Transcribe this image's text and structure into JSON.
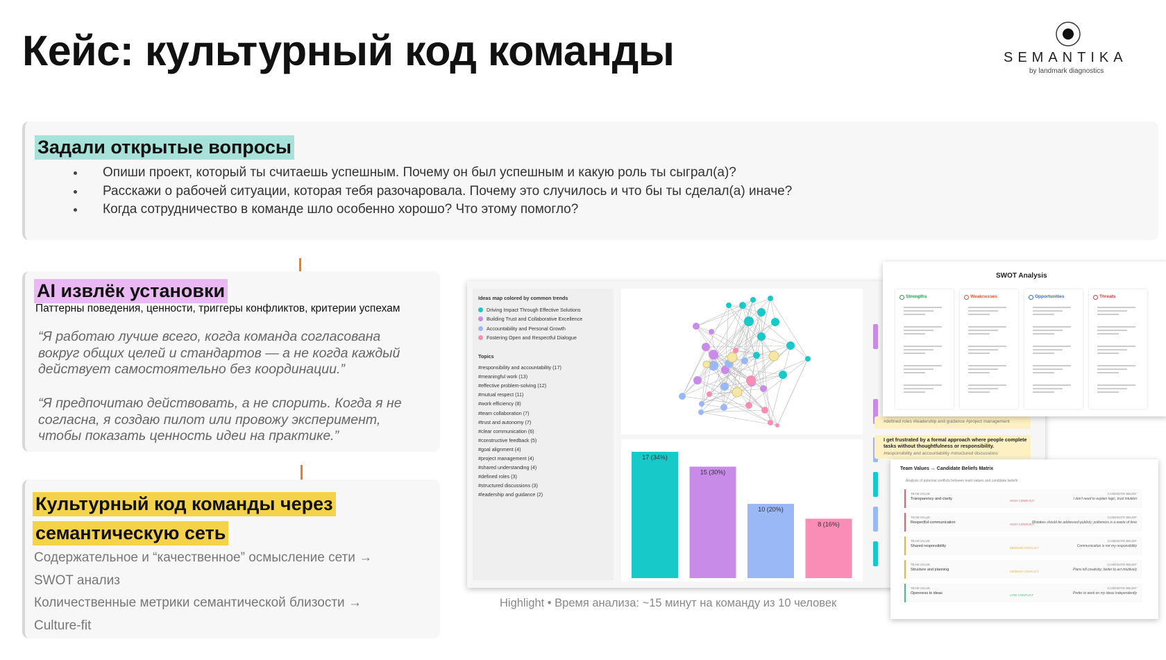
{
  "header": {
    "title": "Кейс: культурный код команды",
    "logo": {
      "name": "SEMANTIKA",
      "tagline": "by landmark diagnostics"
    }
  },
  "questions": {
    "heading": "Задали открытые вопросы",
    "items": [
      "Опиши проект, который ты считаешь успешным. Почему он был успешным и какую роль ты сыграл(а)?",
      "Расскажи о рабочей ситуации, которая тебя разочаровала. Почему это случилось и что бы ты сделал(а) иначе?",
      "Когда сотрудничество в команде шло особенно хорошо? Что этому помогло?"
    ]
  },
  "insights": {
    "heading": "AI извлёк установки",
    "subtitle": "Паттерны поведения, ценности, триггеры конфликтов, критерии успехам",
    "quotes": [
      "“Я работаю лучше всего, когда команда согласована вокруг общих целей и стандартов — а не когда каждый действует самостоятельно без координации.”",
      "“Я предпочитаю действовать, а не спорить. Когда я не согласна, я создаю пилот или провожу эксперимент, чтобы показать ценность идеи на практике.”"
    ]
  },
  "code": {
    "heading_lines": [
      "Культурный код команды через",
      "семантическую сеть"
    ],
    "lines": [
      "Содержательное и “качественное” осмысление сети →",
      "SWOT анализ",
      "Количественные метрики семантической близости →",
      "Culture-fit"
    ]
  },
  "screenshot": {
    "legend": {
      "title": "Ideas map colored by common trends",
      "trends": [
        {
          "name": "Driving Impact Through Effective Solutions",
          "color": "#17c9c9"
        },
        {
          "name": "Building Trust and Collaborative Excellence",
          "color": "#c88be8"
        },
        {
          "name": "Accountability and Personal Growth",
          "color": "#9ab8f5"
        },
        {
          "name": "Fostering Open and Respectful Dialogue",
          "color": "#f98db5"
        }
      ]
    },
    "topics": {
      "title": "Topics",
      "items": [
        "#responsibility and accountability (17)",
        "#meaningful work (13)",
        "#effective problem-solving (12)",
        "#mutual respect (11)",
        "#work efficiency (8)",
        "#team collaboration (7)",
        "#trust and autonomy (7)",
        "#clear communication (6)",
        "#constructive feedback (5)",
        "#goal alignment (4)",
        "#project management (4)",
        "#shared understanding (4)",
        "#defined roles (3)",
        "#structured discussions (3)",
        "#leadership and guidance (2)"
      ]
    },
    "bar_chart": {
      "type": "bar",
      "values": [
        17,
        15,
        10,
        8
      ],
      "value_labels": [
        "17 (34%)",
        "15 (30%)",
        "10 (20%)",
        "8 (16%)"
      ],
      "colors": [
        "#17c9c9",
        "#c88be8",
        "#9ab8f5",
        "#f98db5"
      ]
    },
    "cards": {
      "tags_top": "#defined roles  #leadership and guidance  #project management",
      "quote": "I get frustrated by a formal approach where people complete tasks without thoughtfulness or responsibility.",
      "tags_quote": "#responsibility and accountability  #structured discussions"
    },
    "caption": "Highlight • Время анализа: ~15 минут на команду из 10 человек"
  },
  "swot": {
    "title": "SWOT Analysis",
    "columns": [
      {
        "name": "Strengths",
        "color": "#2e9e5b"
      },
      {
        "name": "Weaknesses",
        "color": "#e0582f"
      },
      {
        "name": "Opportunities",
        "color": "#2f6fd6"
      },
      {
        "name": "Threats",
        "color": "#d93a3a"
      }
    ]
  },
  "matrix": {
    "title": "Team Values ↔ Candidate Beliefs Matrix",
    "subtitle": "Analysis of potential conflicts between team values and candidate beliefs",
    "team_label": "TEAM VALUE",
    "belief_label": "CANDIDATE BELIEF",
    "rows": [
      {
        "value": "Transparency and clarity",
        "conflict": "HIGH CONFLICT",
        "belief": "I don't need to explain logic, trust intuition",
        "color": "#e6626b"
      },
      {
        "value": "Respectful communication",
        "conflict": "HIGH CONFLICT",
        "belief": "Mistakes should be addressed publicly; politeness is a waste of time",
        "color": "#e6626b"
      },
      {
        "value": "Shared responsibility",
        "conflict": "MEDIUM CONFLICT",
        "belief": "Communication is not my responsibility",
        "color": "#f0b34a"
      },
      {
        "value": "Structure and planning",
        "conflict": "MEDIUM CONFLICT",
        "belief": "Plans kill creativity; better to act intuitively",
        "color": "#f0b34a"
      },
      {
        "value": "Openness to ideas",
        "conflict": "LOW CONFLICT",
        "belief": "Prefer to work on my ideas independently",
        "color": "#4cbf7a"
      }
    ]
  }
}
